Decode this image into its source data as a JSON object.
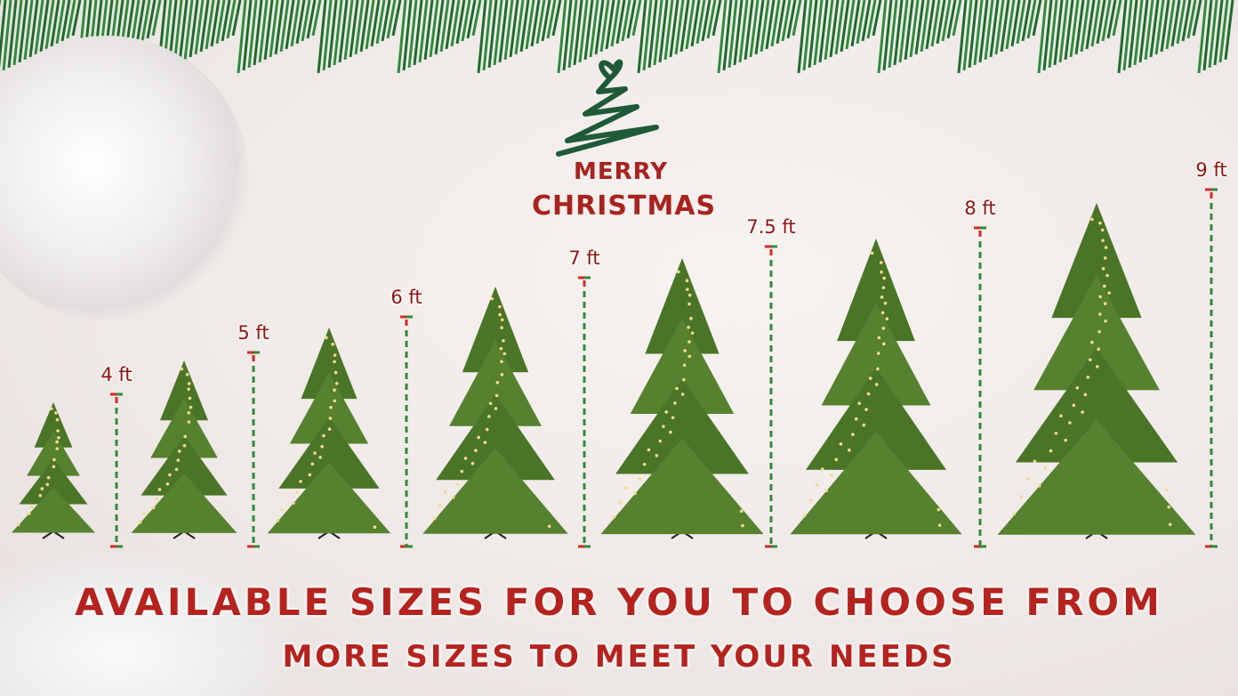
{
  "logo": {
    "line1": "MERRY",
    "line2": "CHRISTMAS"
  },
  "sizes": [
    {
      "label": "4 ft",
      "feet": 4
    },
    {
      "label": "5 ft",
      "feet": 5
    },
    {
      "label": "6 ft",
      "feet": 6
    },
    {
      "label": "7 ft",
      "feet": 7
    },
    {
      "label": "7.5 ft",
      "feet": 7.5
    },
    {
      "label": "8 ft",
      "feet": 8
    },
    {
      "label": "9 ft",
      "feet": 9
    }
  ],
  "headline": "AVAILABLE SIZES FOR YOU TO CHOOSE FROM",
  "subheadline": "MORE SIZES TO MEET YOUR NEEDS",
  "colors": {
    "label": "#8e1410",
    "headline": "#b5231e",
    "ruler_red": "#d42a25",
    "ruler_green": "#2f8a3a",
    "tree": "#4f7a2a"
  }
}
